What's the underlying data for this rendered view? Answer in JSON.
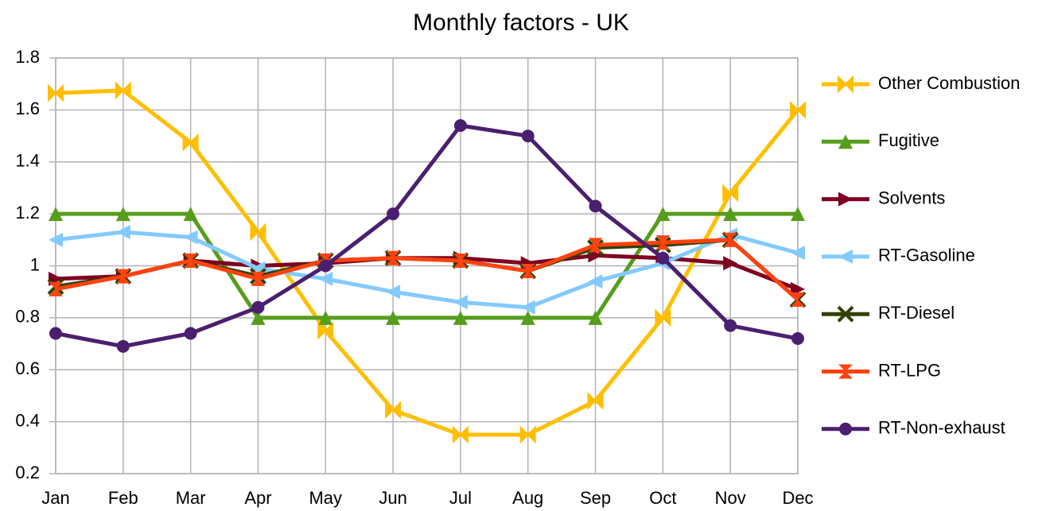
{
  "chart_data": {
    "type": "line",
    "title": "Monthly factors - UK",
    "categories": [
      "Jan",
      "Feb",
      "Mar",
      "Apr",
      "May",
      "Jun",
      "Jul",
      "Aug",
      "Sep",
      "Oct",
      "Nov",
      "Dec"
    ],
    "ylim": [
      0.2,
      1.8
    ],
    "yticks": [
      0.2,
      0.4,
      0.6,
      0.8,
      1,
      1.2,
      1.4,
      1.6,
      1.8
    ],
    "grid": true,
    "legend": "right",
    "series": [
      {
        "name": "Other Combustion",
        "color": "#ffbf00",
        "marker": "xbar",
        "values": [
          1.665,
          1.675,
          1.475,
          1.13,
          0.75,
          0.445,
          0.35,
          0.35,
          0.48,
          0.8,
          1.28,
          1.6
        ]
      },
      {
        "name": "Fugitive",
        "color": "#579d1c",
        "marker": "triangle",
        "values": [
          1.2,
          1.2,
          1.2,
          0.8,
          0.8,
          0.8,
          0.8,
          0.8,
          0.8,
          1.2,
          1.2,
          1.2
        ]
      },
      {
        "name": "Solvents",
        "color": "#7e0021",
        "marker": "right",
        "values": [
          0.95,
          0.96,
          1.02,
          1.0,
          1.01,
          1.03,
          1.03,
          1.01,
          1.04,
          1.03,
          1.01,
          0.91
        ]
      },
      {
        "name": "RT-Gasoline",
        "color": "#83caff",
        "marker": "left",
        "values": [
          1.1,
          1.13,
          1.11,
          0.99,
          0.95,
          0.9,
          0.86,
          0.84,
          0.94,
          1.01,
          1.12,
          1.05
        ]
      },
      {
        "name": "RT-Diesel",
        "color": "#314004",
        "marker": "x",
        "values": [
          0.92,
          0.96,
          1.02,
          0.96,
          1.02,
          1.03,
          1.02,
          0.98,
          1.07,
          1.08,
          1.1,
          0.87
        ]
      },
      {
        "name": "RT-LPG",
        "color": "#ff420e",
        "marker": "hourglass",
        "values": [
          0.91,
          0.96,
          1.02,
          0.95,
          1.02,
          1.03,
          1.02,
          0.98,
          1.08,
          1.09,
          1.1,
          0.87
        ]
      },
      {
        "name": "RT-Non-exhaust",
        "color": "#4b1f6f",
        "marker": "circle",
        "values": [
          0.74,
          0.69,
          0.74,
          0.84,
          1.0,
          1.2,
          1.54,
          1.5,
          1.23,
          1.03,
          0.77,
          0.72
        ]
      }
    ]
  }
}
